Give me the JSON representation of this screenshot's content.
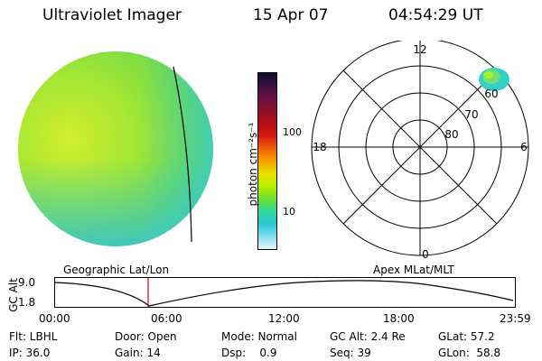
{
  "header": {
    "title": "Ultraviolet Imager",
    "date": "15 Apr 07",
    "time": "04:54:29 UT"
  },
  "colorbar": {
    "label": "photon cm⁻²s⁻¹",
    "ticks": [
      "100",
      "10"
    ],
    "colors": [
      "#0d0d2b",
      "#3a1040",
      "#6a1240",
      "#8c1025",
      "#b40f15",
      "#d61a10",
      "#f0600a",
      "#f7a000",
      "#e8e000",
      "#b8f000",
      "#6ee030",
      "#2fd89a",
      "#28c8d8",
      "#80e0f0",
      "#e8f4f8"
    ]
  },
  "polar": {
    "mlt_labels": {
      "top": "12",
      "left": "18",
      "right": "6",
      "bottom": "0"
    },
    "lat_labels": [
      "60",
      "70",
      "80"
    ]
  },
  "timeline": {
    "left_label": "Geographic Lat/Lon",
    "right_label": "Apex MLat/MLT",
    "axis_title": "GC Alt",
    "y_ticks": [
      "9.0",
      "1.8"
    ],
    "x_ticks": [
      "00:00",
      "06:00",
      "12:00",
      "18:00",
      "23:59"
    ],
    "cursor_time": "04:54"
  },
  "info": {
    "flt": "Flt: LBHL",
    "door": "Door: Open",
    "mode": "Mode: Normal",
    "gc_alt": "GC Alt: 2.4 Re",
    "glat": "GLat:  57.2",
    "ip": "IP: 36.0",
    "gain": "Gain: 14",
    "dsp": "Dsp:    0.9",
    "seq": "Seq: 39",
    "glon": "GLon:  58.8"
  }
}
